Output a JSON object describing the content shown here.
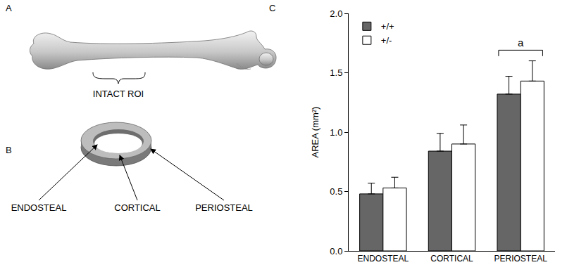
{
  "panel_a": {
    "letter": "A",
    "label": "INTACT ROI"
  },
  "panel_b": {
    "letter": "B",
    "labels": [
      "ENDOSTEAL",
      "CORTICAL",
      "PERIOSTEAL"
    ]
  },
  "panel_c": {
    "letter": "C"
  },
  "chart_data": {
    "type": "bar",
    "categories": [
      "ENDOSTEAL",
      "CORTICAL",
      "PERIOSTEAL"
    ],
    "series": [
      {
        "name": "+/+",
        "color": "#666666",
        "values": [
          0.48,
          0.84,
          1.32
        ],
        "errors": [
          0.09,
          0.15,
          0.15
        ]
      },
      {
        "name": "+/-",
        "color": "#ffffff",
        "values": [
          0.53,
          0.9,
          1.43
        ],
        "errors": [
          0.09,
          0.16,
          0.17
        ]
      }
    ],
    "y_label": "AREA (mm²)",
    "ylim": [
      0,
      2.0
    ],
    "yticks": [
      {
        "value": 0,
        "label": "0.0"
      },
      {
        "value": 0.5,
        "label": "0.5"
      },
      {
        "value": 1.0,
        "label": "1.0"
      },
      {
        "value": 1.5,
        "label": "1.5"
      },
      {
        "value": 2.0,
        "label": "2.0"
      }
    ],
    "grid": false,
    "legend": "upper left",
    "annotations": [
      {
        "text": "a",
        "category": "PERIOSTEAL"
      }
    ]
  }
}
